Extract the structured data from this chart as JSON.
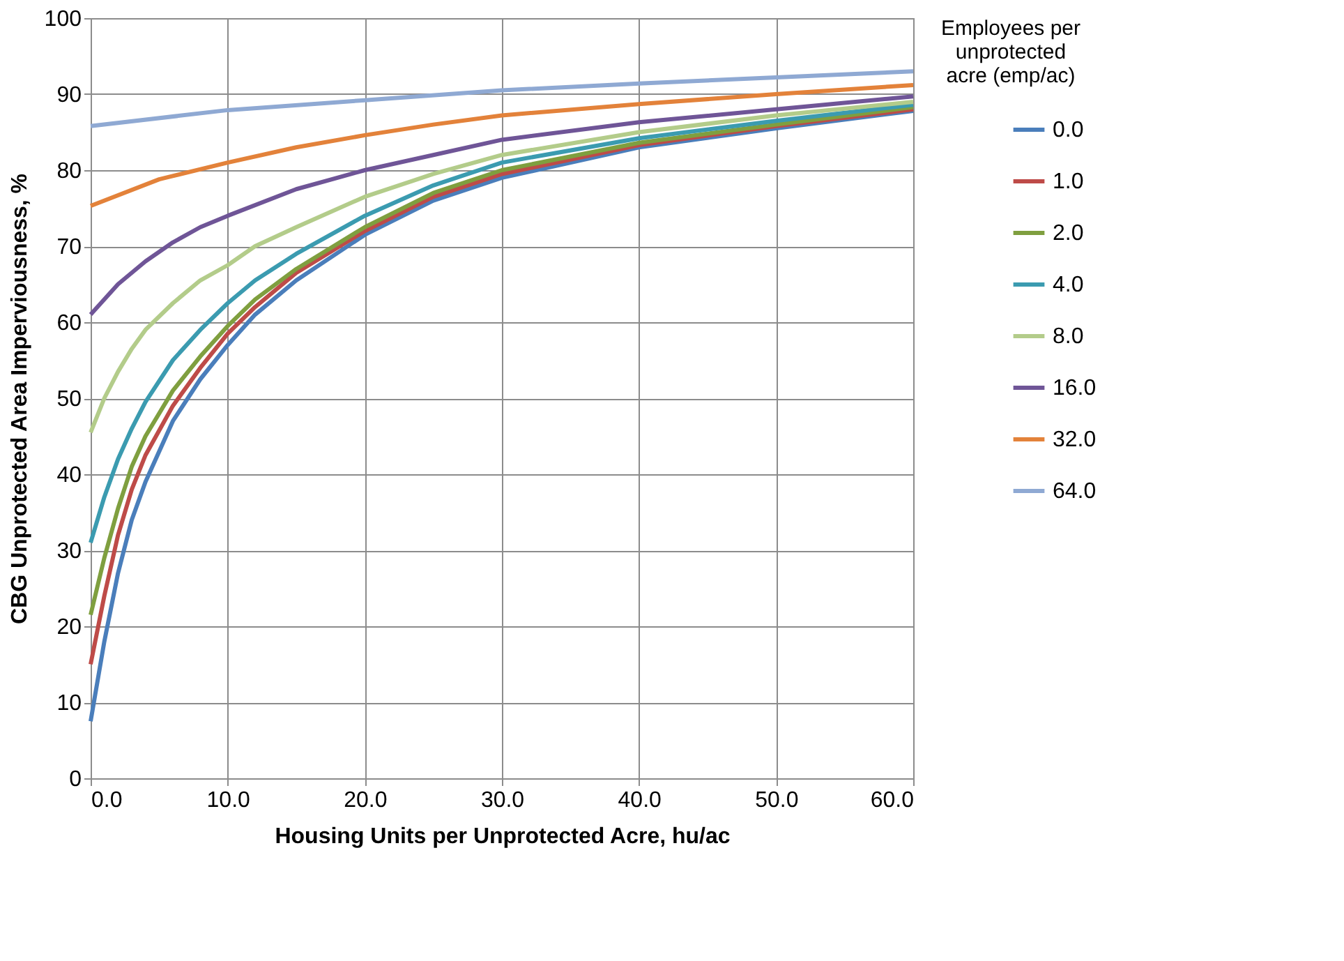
{
  "chart_data": {
    "type": "line",
    "xlabel": "Housing Units per Unprotected Acre, hu/ac",
    "ylabel": "CBG Unprotected Area Imperviousness, %",
    "legend_title": "Employees per unprotected acre (emp/ac)",
    "xlim": [
      0,
      60
    ],
    "ylim": [
      0,
      100
    ],
    "xticks": [
      {
        "value": 0,
        "label": "0.0"
      },
      {
        "value": 10,
        "label": "10.0"
      },
      {
        "value": 20,
        "label": "20.0"
      },
      {
        "value": 30,
        "label": "30.0"
      },
      {
        "value": 40,
        "label": "40.0"
      },
      {
        "value": 50,
        "label": "50.0"
      },
      {
        "value": 60,
        "label": "60.0"
      }
    ],
    "yticks": [
      0,
      10,
      20,
      30,
      40,
      50,
      60,
      70,
      80,
      90,
      100
    ],
    "grid": true,
    "legend": "right",
    "marker": "none",
    "line_style": "solid",
    "series": [
      {
        "name": "0.0",
        "color": "#4a7ebb",
        "x": [
          0,
          1,
          2,
          3,
          4,
          6,
          8,
          10,
          12,
          15,
          20,
          25,
          30,
          40,
          50,
          60
        ],
        "values": [
          7.5,
          18,
          27,
          34,
          39,
          47,
          52.5,
          57,
          61,
          65.5,
          71.5,
          76,
          79,
          83,
          85.5,
          87.8
        ]
      },
      {
        "name": "1.0",
        "color": "#be4b48",
        "x": [
          0,
          1,
          2,
          3,
          4,
          6,
          8,
          10,
          12,
          15,
          20,
          25,
          30,
          40,
          50,
          60
        ],
        "values": [
          15,
          24,
          32,
          38,
          42.5,
          49,
          54,
          58.5,
          62,
          66.5,
          72,
          76.5,
          79.5,
          83.3,
          85.8,
          88
        ]
      },
      {
        "name": "2.0",
        "color": "#7f9f3f",
        "x": [
          0,
          1,
          2,
          3,
          4,
          6,
          8,
          10,
          12,
          15,
          20,
          25,
          30,
          40,
          50,
          60
        ],
        "values": [
          21.5,
          29,
          35.5,
          41,
          45,
          51,
          55.5,
          59.5,
          63,
          67,
          72.5,
          77,
          80,
          83.6,
          86,
          88.3
        ]
      },
      {
        "name": "4.0",
        "color": "#3b9bb0",
        "x": [
          0,
          1,
          2,
          3,
          4,
          6,
          8,
          10,
          12,
          15,
          20,
          25,
          30,
          40,
          50,
          60
        ],
        "values": [
          31,
          37,
          42,
          46,
          49.5,
          55,
          59,
          62.5,
          65.5,
          69,
          74,
          78,
          81,
          84.2,
          86.5,
          88.6
        ]
      },
      {
        "name": "8.0",
        "color": "#b3cc8a",
        "x": [
          0,
          1,
          2,
          3,
          4,
          6,
          8,
          10,
          12,
          15,
          20,
          25,
          30,
          40,
          50,
          60
        ],
        "values": [
          45.5,
          50,
          53.5,
          56.5,
          59,
          62.5,
          65.5,
          67.5,
          70,
          72.5,
          76.5,
          79.5,
          82,
          85,
          87.2,
          89
        ]
      },
      {
        "name": "16.0",
        "color": "#6f5597",
        "x": [
          0,
          2,
          4,
          6,
          8,
          10,
          15,
          20,
          25,
          30,
          40,
          50,
          60
        ],
        "values": [
          61,
          65,
          68,
          70.5,
          72.5,
          74,
          77.5,
          80,
          82,
          84,
          86.3,
          88,
          89.7
        ]
      },
      {
        "name": "32.0",
        "color": "#e3823a",
        "x": [
          0,
          5,
          10,
          15,
          20,
          25,
          30,
          40,
          50,
          60
        ],
        "values": [
          75.3,
          78.8,
          81,
          83,
          84.6,
          86,
          87.2,
          88.7,
          90,
          91.2
        ]
      },
      {
        "name": "64.0",
        "color": "#8fa9d3",
        "x": [
          0,
          10,
          20,
          30,
          40,
          50,
          60
        ],
        "values": [
          85.8,
          87.9,
          89.2,
          90.5,
          91.4,
          92.2,
          93
        ]
      }
    ]
  }
}
